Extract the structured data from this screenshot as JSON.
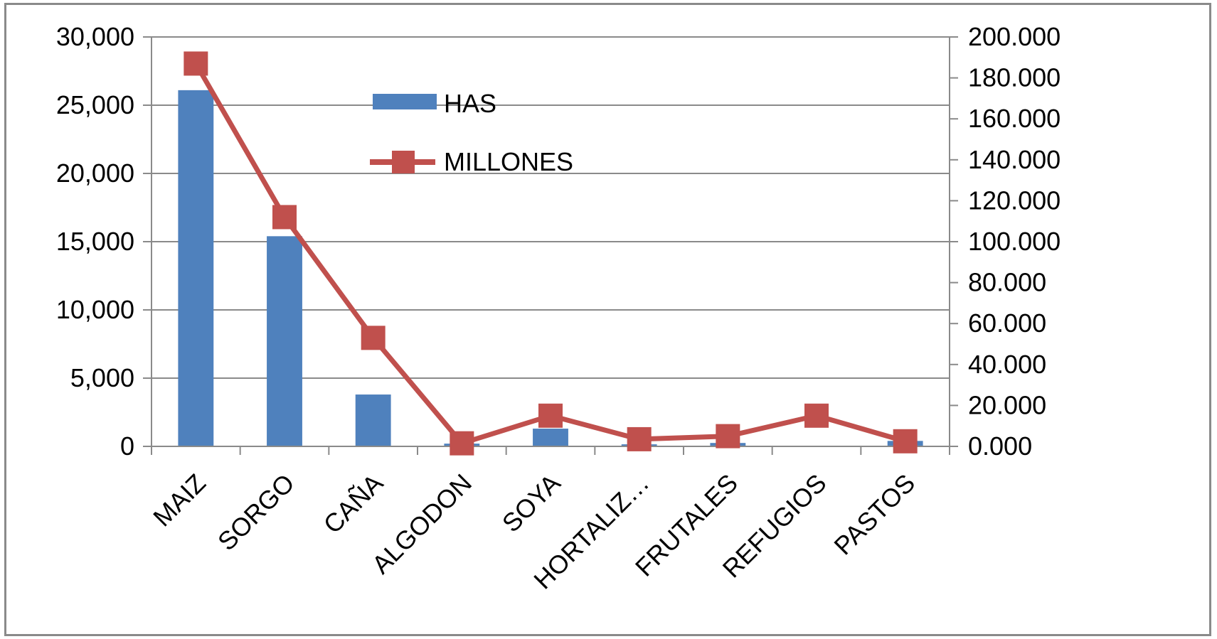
{
  "chart_data": {
    "type": "bar",
    "categories": [
      "MAIZ",
      "SORGO",
      "CAÑA",
      "ALGODON",
      "SOYA",
      "HORTALIZ…",
      "FRUTALES",
      "REFUGIOS",
      "PASTOS"
    ],
    "series": [
      {
        "name": "HAS",
        "type": "bar",
        "axis": "left",
        "color": "#4f81bd",
        "values": [
          26100,
          15400,
          3800,
          200,
          1300,
          150,
          250,
          0,
          400
        ]
      },
      {
        "name": "MILLONES",
        "type": "line",
        "axis": "right",
        "color": "#c0504d",
        "values": [
          187,
          112,
          53,
          1.5,
          15,
          3.5,
          5,
          15,
          2.5
        ]
      }
    ],
    "left_axis": {
      "ylim": [
        0,
        30000
      ],
      "ticks": [
        0,
        5000,
        10000,
        15000,
        20000,
        25000,
        30000
      ],
      "tick_labels": [
        "0",
        "5,000",
        "10,000",
        "15,000",
        "20,000",
        "25,000",
        "30,000"
      ]
    },
    "right_axis": {
      "ylim": [
        0,
        200
      ],
      "ticks": [
        0,
        20,
        40,
        60,
        80,
        100,
        120,
        140,
        160,
        180,
        200
      ],
      "tick_labels": [
        "0.000",
        "20.000",
        "40.000",
        "60.000",
        "80.000",
        "100.000",
        "120.000",
        "140.000",
        "160.000",
        "180.000",
        "200.000"
      ]
    },
    "grid": true,
    "legend": {
      "position": "inside-top-center",
      "entries": [
        "HAS",
        "MILLONES"
      ]
    },
    "title": "",
    "xlabel": "",
    "ylabel": ""
  }
}
